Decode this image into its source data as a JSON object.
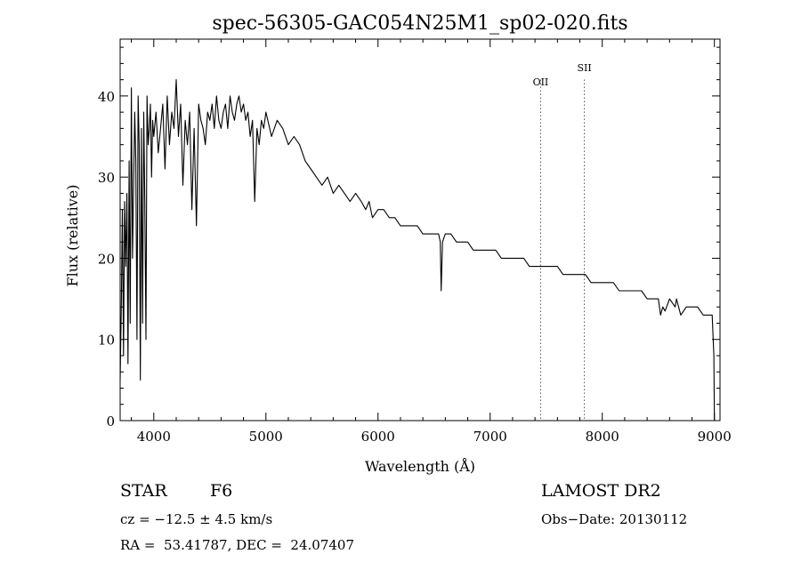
{
  "chart_data": {
    "type": "line",
    "title": "spec-56305-GAC054N25M1_sp02-020.fits",
    "xlabel": "Wavelength (Å)",
    "ylabel": "Flux (relative)",
    "xlim": [
      3700,
      9050
    ],
    "ylim": [
      0,
      47
    ],
    "xticks": [
      4000,
      5000,
      6000,
      7000,
      8000,
      9000
    ],
    "yticks": [
      0,
      10,
      20,
      30,
      40
    ],
    "grid": false,
    "line_color": "#000000",
    "series": [
      {
        "x": [
          3700,
          3710,
          3720,
          3730,
          3740,
          3750,
          3760,
          3770,
          3780,
          3790,
          3800,
          3810,
          3820,
          3830,
          3840,
          3850,
          3860,
          3870,
          3880,
          3890,
          3900,
          3910,
          3920,
          3930,
          3940,
          3950,
          3960,
          3970,
          3980,
          3990,
          4000,
          4020,
          4040,
          4060,
          4080,
          4100,
          4120,
          4140,
          4160,
          4180,
          4200,
          4220,
          4240,
          4260,
          4280,
          4300,
          4320,
          4340,
          4360,
          4380,
          4400,
          4420,
          4440,
          4460,
          4480,
          4500,
          4520,
          4540,
          4560,
          4580,
          4600,
          4620,
          4640,
          4660,
          4680,
          4700,
          4720,
          4740,
          4760,
          4780,
          4800,
          4820,
          4840,
          4860,
          4880,
          4900,
          4920,
          4940,
          4960,
          4980,
          5000,
          5050,
          5100,
          5150,
          5200,
          5250,
          5300,
          5350,
          5400,
          5450,
          5500,
          5550,
          5600,
          5650,
          5700,
          5750,
          5800,
          5850,
          5890,
          5920,
          5950,
          6000,
          6050,
          6100,
          6150,
          6200,
          6250,
          6300,
          6350,
          6400,
          6450,
          6500,
          6540,
          6555,
          6563,
          6575,
          6600,
          6650,
          6700,
          6750,
          6800,
          6850,
          6900,
          6950,
          7000,
          7050,
          7100,
          7150,
          7200,
          7250,
          7300,
          7350,
          7400,
          7450,
          7500,
          7550,
          7600,
          7650,
          7700,
          7750,
          7800,
          7850,
          7900,
          7950,
          8000,
          8050,
          8100,
          8150,
          8200,
          8250,
          8300,
          8350,
          8400,
          8450,
          8500,
          8520,
          8540,
          8560,
          8600,
          8650,
          8662,
          8700,
          8750,
          8800,
          8850,
          8900,
          8950,
          8980,
          8995,
          9000
        ],
        "y": [
          5,
          14,
          26,
          8,
          27,
          19,
          28,
          7,
          32,
          12,
          41,
          20,
          29,
          38,
          32,
          10,
          40,
          34,
          5,
          36,
          12,
          38,
          27,
          10,
          40,
          34,
          36,
          39,
          30,
          37,
          35,
          38,
          33,
          36,
          39,
          31,
          40,
          34,
          38,
          36,
          42,
          35,
          39,
          29,
          37,
          34,
          38,
          26,
          36,
          24,
          39,
          37,
          36,
          34,
          38,
          37,
          39,
          36,
          40,
          37,
          36,
          38,
          39,
          36,
          40,
          38,
          37,
          39,
          40,
          38,
          39,
          37,
          38,
          35,
          37,
          27,
          36,
          34,
          37,
          36,
          38,
          35,
          37,
          36,
          34,
          35,
          34,
          32,
          31,
          30,
          29,
          30,
          28,
          29,
          28,
          27,
          28,
          27,
          26,
          27,
          25,
          26,
          26,
          25,
          25,
          24,
          24,
          24,
          24,
          23,
          23,
          23,
          23,
          22,
          16,
          22,
          23,
          23,
          22,
          22,
          22,
          21,
          21,
          21,
          21,
          21,
          20,
          20,
          20,
          20,
          20,
          19,
          19,
          19,
          19,
          19,
          19,
          18,
          18,
          18,
          18,
          18,
          17,
          17,
          17,
          17,
          17,
          16,
          16,
          16,
          16,
          16,
          15,
          15,
          15,
          13,
          14,
          13.5,
          15,
          14,
          15,
          13,
          14,
          14,
          14,
          13,
          13,
          13,
          8,
          0
        ]
      }
    ],
    "annotations": [
      {
        "label": "OII",
        "x": 7450
      },
      {
        "label": "SII",
        "x": 7840
      }
    ]
  },
  "info": {
    "object_class": "STAR",
    "subclass": "F6",
    "survey": "LAMOST DR2",
    "cz": "cz = −12.5 ± 4.5 km/s",
    "obs_date": "Obs−Date: 20130112",
    "coords": "RA =  53.41787, DEC =  24.07407"
  }
}
